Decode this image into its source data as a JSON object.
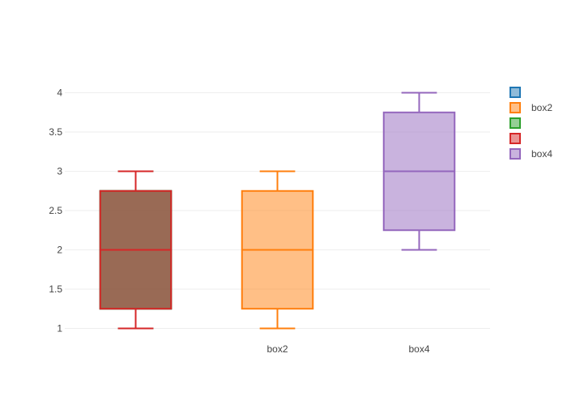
{
  "chart_data": {
    "type": "box",
    "title": "",
    "xlabel": "",
    "ylabel": "",
    "ylim": [
      0.85,
      4.15
    ],
    "y_ticks": [
      1,
      1.5,
      2,
      2.5,
      3,
      3.5,
      4
    ],
    "y_tick_labels": [
      "1",
      "1.5",
      "2",
      "2.5",
      "3",
      "3.5",
      "4"
    ],
    "grid": true,
    "legend_position": "right",
    "categories": [
      "",
      "box2",
      "box4"
    ],
    "series": [
      {
        "legend_label": "",
        "color": "#1f77b4",
        "category_index": 0,
        "whisker_low": 1,
        "q1": 1.25,
        "median": 2,
        "q3": 2.75,
        "whisker_high": 3
      },
      {
        "name": "box2",
        "legend_label": "box2",
        "color": "#ff7f0e",
        "category_index": 1,
        "whisker_low": 1,
        "q1": 1.25,
        "median": 2,
        "q3": 2.75,
        "whisker_high": 3
      },
      {
        "legend_label": "",
        "color": "#2ca02c",
        "category_index": 0,
        "whisker_low": 1,
        "q1": 1.25,
        "median": 2,
        "q3": 2.75,
        "whisker_high": 3
      },
      {
        "legend_label": "",
        "color": "#d62728",
        "category_index": 0,
        "whisker_low": 1,
        "q1": 1.25,
        "median": 2,
        "q3": 2.75,
        "whisker_high": 3
      },
      {
        "name": "box4",
        "legend_label": "box4",
        "color": "#9467bd",
        "category_index": 2,
        "whisker_low": 2,
        "q1": 2.25,
        "median": 3,
        "q3": 3.75,
        "whisker_high": 4
      }
    ]
  }
}
